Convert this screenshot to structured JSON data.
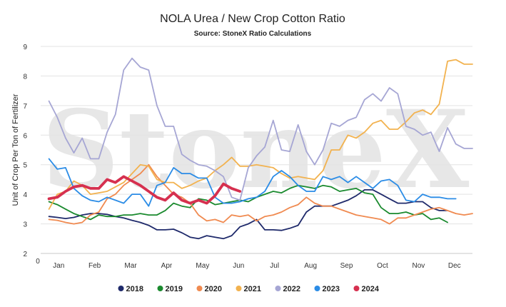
{
  "chart_data": {
    "type": "line",
    "title": "NOLA Urea / New Crop Cotton Ratio",
    "subtitle": "Source: StoneX Ratio Calculations",
    "xlabel": "",
    "ylabel": "Unit of Crop Per Ton of Fertilizer",
    "watermark": "StoneX",
    "xlim": [
      0,
      52
    ],
    "ylim": [
      2,
      9
    ],
    "y_ticks": [
      2,
      3,
      4,
      5,
      6,
      7,
      8,
      9
    ],
    "x_tick_start": "0",
    "months": [
      "Jan",
      "Feb",
      "Mar",
      "Apr",
      "May",
      "Jun",
      "Jul",
      "Aug",
      "Sep",
      "Oct",
      "Nov",
      "Dec"
    ],
    "grid": true,
    "legend": "bottom",
    "series": [
      {
        "name": "2018",
        "color": "#1f2a6b",
        "highlight": false,
        "x": [
          1,
          2,
          3,
          4,
          5,
          6,
          7,
          8,
          9,
          10,
          11,
          12,
          13,
          14,
          15,
          16,
          17,
          18,
          19,
          20,
          21,
          22,
          23,
          24,
          25,
          26,
          27,
          28,
          29,
          30,
          31,
          32,
          33,
          34,
          35,
          36,
          37,
          38,
          39,
          40,
          41,
          42,
          43,
          44,
          45,
          46,
          47,
          48,
          49
        ],
        "y": [
          3.25,
          3.22,
          3.18,
          3.22,
          3.3,
          3.35,
          3.35,
          3.32,
          3.25,
          3.2,
          3.12,
          3.05,
          2.95,
          2.8,
          2.8,
          2.82,
          2.7,
          2.55,
          2.5,
          2.6,
          2.55,
          2.5,
          2.6,
          2.9,
          3.0,
          3.15,
          2.8,
          2.8,
          2.78,
          2.85,
          2.95,
          3.4,
          3.6,
          3.6,
          3.6,
          3.7,
          3.8,
          3.95,
          4.15,
          4.15,
          4.0,
          3.85,
          3.7,
          3.7,
          3.75,
          3.75,
          3.55,
          3.45,
          3.45
        ]
      },
      {
        "name": "2019",
        "color": "#1a8a2e",
        "highlight": false,
        "x": [
          1,
          2,
          3,
          4,
          5,
          6,
          7,
          8,
          9,
          10,
          11,
          12,
          13,
          14,
          15,
          16,
          17,
          18,
          19,
          20,
          21,
          22,
          23,
          24,
          25,
          26,
          27,
          28,
          29,
          30,
          31,
          32,
          33,
          34,
          35,
          36,
          37,
          38,
          39,
          40,
          41,
          42,
          43,
          44,
          45,
          46,
          47,
          48,
          49
        ],
        "y": [
          3.75,
          3.65,
          3.5,
          3.35,
          3.25,
          3.15,
          3.3,
          3.25,
          3.25,
          3.3,
          3.3,
          3.35,
          3.3,
          3.3,
          3.45,
          3.7,
          3.6,
          3.55,
          3.85,
          3.8,
          3.65,
          3.7,
          3.75,
          3.8,
          3.75,
          3.9,
          4.0,
          4.1,
          4.05,
          4.2,
          4.3,
          4.25,
          4.2,
          4.3,
          4.25,
          4.1,
          4.15,
          4.2,
          4.05,
          4.0,
          3.55,
          3.35,
          3.35,
          3.4,
          3.3,
          3.35,
          3.15,
          3.2,
          3.05
        ]
      },
      {
        "name": "2020",
        "color": "#f08a50",
        "highlight": false,
        "x": [
          1,
          2,
          3,
          4,
          5,
          6,
          7,
          8,
          9,
          10,
          11,
          12,
          13,
          14,
          15,
          16,
          17,
          18,
          19,
          20,
          21,
          22,
          23,
          24,
          25,
          26,
          27,
          28,
          29,
          30,
          31,
          32,
          33,
          34,
          35,
          36,
          37,
          38,
          39,
          40,
          41,
          42,
          43,
          44,
          45,
          46,
          47,
          48,
          49,
          50,
          51,
          52
        ],
        "y": [
          3.15,
          3.12,
          3.05,
          3.0,
          3.05,
          3.3,
          3.4,
          3.85,
          4.0,
          4.3,
          4.5,
          4.7,
          5.0,
          4.6,
          4.3,
          4.0,
          3.9,
          3.7,
          3.3,
          3.1,
          3.15,
          3.05,
          3.3,
          3.25,
          3.3,
          3.1,
          3.25,
          3.3,
          3.4,
          3.55,
          3.65,
          3.9,
          3.7,
          3.6,
          3.6,
          3.5,
          3.4,
          3.3,
          3.25,
          3.2,
          3.15,
          3.0,
          3.2,
          3.2,
          3.3,
          3.4,
          3.5,
          3.55,
          3.45,
          3.35,
          3.3,
          3.35
        ]
      },
      {
        "name": "2021",
        "color": "#f2b24f",
        "highlight": false,
        "x": [
          1,
          2,
          3,
          4,
          5,
          6,
          7,
          8,
          9,
          10,
          11,
          12,
          13,
          14,
          15,
          16,
          17,
          18,
          19,
          20,
          21,
          22,
          23,
          24,
          25,
          26,
          27,
          28,
          29,
          30,
          31,
          32,
          33,
          34,
          35,
          36,
          37,
          38,
          39,
          40,
          41,
          42,
          43,
          44,
          45,
          46,
          47,
          48,
          49,
          50,
          51,
          52
        ],
        "y": [
          3.5,
          4.0,
          4.1,
          4.45,
          4.3,
          4.0,
          4.05,
          4.1,
          4.25,
          4.4,
          4.7,
          5.0,
          4.95,
          4.5,
          4.4,
          4.4,
          4.2,
          4.3,
          4.45,
          4.55,
          4.8,
          5.0,
          5.25,
          4.95,
          4.95,
          5.0,
          4.95,
          4.9,
          4.7,
          4.55,
          4.6,
          4.55,
          4.5,
          4.8,
          5.5,
          5.5,
          6.0,
          5.9,
          6.1,
          6.4,
          6.5,
          6.2,
          6.2,
          6.45,
          6.75,
          6.85,
          6.7,
          7.05,
          8.5,
          8.55,
          8.4,
          8.4
        ]
      },
      {
        "name": "2022",
        "color": "#a6a6d4",
        "highlight": false,
        "x": [
          1,
          2,
          3,
          4,
          5,
          6,
          7,
          8,
          9,
          10,
          11,
          12,
          13,
          14,
          15,
          16,
          17,
          18,
          19,
          20,
          21,
          22,
          23,
          24,
          25,
          26,
          27,
          28,
          29,
          30,
          31,
          32,
          33,
          34,
          35,
          36,
          37,
          38,
          39,
          40,
          41,
          42,
          43,
          44,
          45,
          46,
          47,
          48,
          49,
          50,
          51,
          52
        ],
        "y": [
          7.15,
          6.6,
          5.9,
          5.4,
          5.9,
          5.2,
          5.2,
          6.1,
          6.7,
          8.2,
          8.6,
          8.3,
          8.2,
          7.0,
          6.3,
          6.3,
          5.35,
          5.15,
          5.0,
          4.95,
          4.8,
          4.6,
          3.9,
          3.8,
          4.9,
          5.3,
          5.6,
          6.5,
          5.5,
          5.45,
          6.35,
          5.45,
          5.0,
          5.5,
          6.4,
          6.3,
          6.5,
          6.6,
          7.2,
          7.4,
          7.15,
          7.6,
          7.4,
          6.3,
          6.2,
          6.0,
          6.1,
          5.45,
          6.25,
          5.7,
          5.55,
          5.55
        ]
      },
      {
        "name": "2023",
        "color": "#2b8ce6",
        "highlight": false,
        "x": [
          1,
          2,
          3,
          4,
          5,
          6,
          7,
          8,
          9,
          10,
          11,
          12,
          13,
          14,
          15,
          16,
          17,
          18,
          19,
          20,
          21,
          22,
          23,
          24,
          25,
          26,
          27,
          28,
          29,
          30,
          31,
          32,
          33,
          34,
          35,
          36,
          37,
          38,
          39,
          40,
          41,
          42,
          43,
          44,
          45,
          46,
          47,
          48,
          49,
          50
        ],
        "y": [
          5.2,
          4.85,
          4.9,
          4.2,
          3.95,
          3.8,
          3.75,
          3.9,
          3.8,
          3.7,
          4.0,
          4.0,
          3.6,
          4.3,
          4.4,
          4.9,
          4.7,
          4.7,
          4.55,
          4.55,
          3.9,
          3.7,
          3.7,
          3.75,
          3.85,
          3.9,
          4.1,
          4.6,
          4.8,
          4.6,
          4.3,
          4.1,
          4.1,
          4.6,
          4.5,
          4.6,
          4.4,
          4.6,
          4.4,
          4.2,
          4.45,
          4.5,
          4.3,
          3.8,
          3.75,
          4.0,
          3.9,
          3.9,
          3.85,
          3.85
        ]
      },
      {
        "name": "2024",
        "color": "#d6304f",
        "highlight": true,
        "x": [
          1,
          2,
          3,
          4,
          5,
          6,
          7,
          8,
          9,
          10,
          11,
          12,
          13,
          14,
          15,
          16,
          17,
          18,
          19,
          20,
          21,
          22,
          23,
          24
        ],
        "y": [
          3.85,
          3.9,
          4.1,
          4.25,
          4.3,
          4.2,
          4.2,
          4.5,
          4.4,
          4.6,
          4.45,
          4.3,
          4.1,
          3.9,
          3.8,
          4.05,
          3.8,
          3.7,
          3.8,
          3.7,
          3.95,
          4.35,
          4.2,
          4.1
        ]
      }
    ]
  }
}
